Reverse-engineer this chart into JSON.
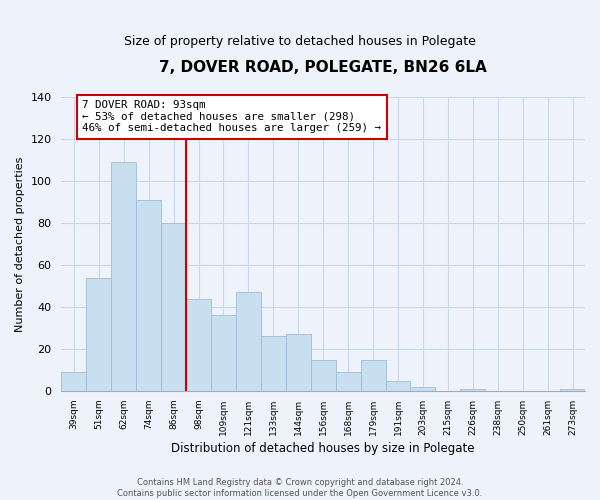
{
  "title": "7, DOVER ROAD, POLEGATE, BN26 6LA",
  "subtitle": "Size of property relative to detached houses in Polegate",
  "xlabel": "Distribution of detached houses by size in Polegate",
  "ylabel": "Number of detached properties",
  "bar_labels": [
    "39sqm",
    "51sqm",
    "62sqm",
    "74sqm",
    "86sqm",
    "98sqm",
    "109sqm",
    "121sqm",
    "133sqm",
    "144sqm",
    "156sqm",
    "168sqm",
    "179sqm",
    "191sqm",
    "203sqm",
    "215sqm",
    "226sqm",
    "238sqm",
    "250sqm",
    "261sqm",
    "273sqm"
  ],
  "bar_values": [
    9,
    54,
    109,
    91,
    80,
    44,
    36,
    47,
    26,
    27,
    15,
    9,
    15,
    5,
    2,
    0,
    1,
    0,
    0,
    0,
    1
  ],
  "bar_color": "#c8dff0",
  "bar_edge_color": "#a0bcd8",
  "vline_x_index": 5,
  "vline_color": "#cc0000",
  "ylim": [
    0,
    140
  ],
  "yticks": [
    0,
    20,
    40,
    60,
    80,
    100,
    120,
    140
  ],
  "annotation_text": "7 DOVER ROAD: 93sqm\n← 53% of detached houses are smaller (298)\n46% of semi-detached houses are larger (259) →",
  "annotation_box_color": "white",
  "annotation_box_edge_color": "#cc0000",
  "footer_text": "Contains HM Land Registry data © Crown copyright and database right 2024.\nContains public sector information licensed under the Open Government Licence v3.0.",
  "bg_color": "#eef3fb",
  "grid_color": "#c8d8e8",
  "title_fontsize": 11,
  "subtitle_fontsize": 9
}
